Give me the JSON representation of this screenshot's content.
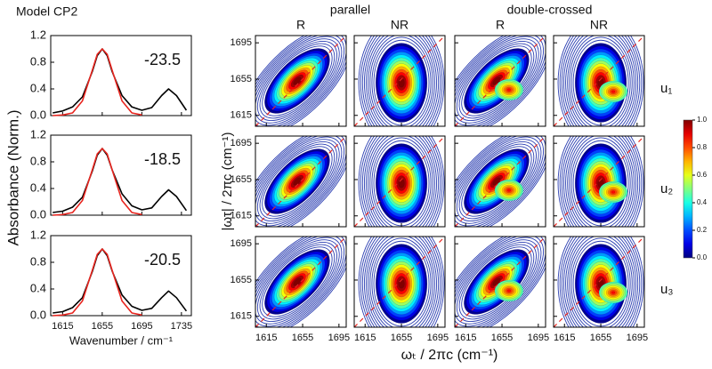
{
  "title": "Model CP2",
  "ylabel": "Absorbance (Norm.)",
  "chart_data": [
    {
      "type": "line",
      "annotation": "-23.5",
      "xlim": [
        1603,
        1745
      ],
      "ylim": [
        0,
        1.2
      ],
      "xticks": [
        1615,
        1655,
        1695,
        1735
      ],
      "yticks": [
        {
          "value": 0,
          "label": "0.0"
        },
        {
          "value": 0.4,
          "label": "0.4"
        },
        {
          "value": 0.8,
          "label": "0.8"
        },
        {
          "value": 1.2,
          "label": "1.2"
        }
      ],
      "x": [
        1605,
        1615,
        1625,
        1635,
        1645,
        1650,
        1655,
        1660,
        1665,
        1675,
        1685,
        1695,
        1705,
        1715,
        1722,
        1730,
        1740
      ],
      "series": [
        {
          "color": "#000000",
          "values": [
            0.04,
            0.07,
            0.13,
            0.28,
            0.66,
            0.9,
            1.0,
            0.9,
            0.66,
            0.3,
            0.13,
            0.08,
            0.12,
            0.3,
            0.4,
            0.3,
            0.08
          ]
        },
        {
          "color": "#e8251f",
          "values": [
            0,
            0.01,
            0.04,
            0.22,
            0.68,
            0.92,
            1.0,
            0.92,
            0.68,
            0.22,
            0.04,
            0.01,
            null,
            null,
            null,
            null,
            null
          ]
        }
      ]
    },
    {
      "type": "line",
      "annotation": "-18.5",
      "xlim": [
        1603,
        1745
      ],
      "ylim": [
        0,
        1.2
      ],
      "xticks": [
        1615,
        1655,
        1695,
        1735
      ],
      "yticks": [
        {
          "value": 0,
          "label": "0.0"
        },
        {
          "value": 0.4,
          "label": "0.4"
        },
        {
          "value": 0.8,
          "label": "0.8"
        },
        {
          "value": 1.2,
          "label": "1.2"
        }
      ],
      "x": [
        1605,
        1615,
        1625,
        1635,
        1645,
        1650,
        1655,
        1660,
        1665,
        1675,
        1685,
        1695,
        1705,
        1715,
        1722,
        1730,
        1740
      ],
      "series": [
        {
          "color": "#000000",
          "values": [
            0.04,
            0.06,
            0.12,
            0.27,
            0.66,
            0.9,
            1.0,
            0.9,
            0.68,
            0.32,
            0.14,
            0.08,
            0.11,
            0.28,
            0.38,
            0.28,
            0.07
          ]
        },
        {
          "color": "#e8251f",
          "values": [
            0,
            0.01,
            0.04,
            0.22,
            0.68,
            0.92,
            1.0,
            0.92,
            0.68,
            0.22,
            0.04,
            0.01,
            null,
            null,
            null,
            null,
            null
          ]
        }
      ]
    },
    {
      "type": "line",
      "annotation": "-20.5",
      "xlim": [
        1603,
        1745
      ],
      "ylim": [
        0,
        1.2
      ],
      "xticks": [
        1615,
        1655,
        1695,
        1735
      ],
      "xtick_labels": true,
      "xlabel": "Wavenumber / cm⁻¹",
      "yticks": [
        {
          "value": 0,
          "label": "0.0"
        },
        {
          "value": 0.4,
          "label": "0.4"
        },
        {
          "value": 0.8,
          "label": "0.8"
        },
        {
          "value": 1.2,
          "label": "1.2"
        }
      ],
      "x": [
        1605,
        1615,
        1625,
        1635,
        1645,
        1650,
        1655,
        1660,
        1665,
        1675,
        1685,
        1695,
        1705,
        1715,
        1722,
        1730,
        1740
      ],
      "series": [
        {
          "color": "#000000",
          "values": [
            0.04,
            0.06,
            0.12,
            0.27,
            0.66,
            0.9,
            1.0,
            0.9,
            0.67,
            0.31,
            0.14,
            0.08,
            0.11,
            0.27,
            0.37,
            0.27,
            0.07
          ]
        },
        {
          "color": "#e8251f",
          "values": [
            0,
            0.01,
            0.04,
            0.22,
            0.68,
            0.92,
            1.0,
            0.92,
            0.68,
            0.22,
            0.04,
            0.01,
            null,
            null,
            null,
            null,
            null
          ]
        }
      ]
    },
    {
      "type": "contour",
      "group_labels": [
        "parallel",
        "double-crossed"
      ],
      "column_labels": [
        "R",
        "NR",
        "R",
        "NR"
      ],
      "row_labels": [
        "u₁",
        "u₂",
        "u₃"
      ],
      "xlabel": "ωₜ / 2πc (cm⁻¹)",
      "ylabel": "|ωτ| / 2πc (cm⁻¹)",
      "xlim": [
        1603,
        1703
      ],
      "ylim": [
        1603,
        1703
      ],
      "xticks": [
        1615,
        1655,
        1695
      ],
      "yticks": [
        1615,
        1655,
        1695
      ],
      "colorbar": {
        "ticks": [
          {
            "value": 0,
            "label": "0.0"
          },
          {
            "value": 0.2,
            "label": "0.2"
          },
          {
            "value": 0.4,
            "label": "0.4"
          },
          {
            "value": 0.6,
            "label": "0.6"
          },
          {
            "value": 0.8,
            "label": "0.8"
          },
          {
            "value": 1,
            "label": "1.0"
          }
        ],
        "lim": [
          0,
          1
        ]
      }
    }
  ]
}
